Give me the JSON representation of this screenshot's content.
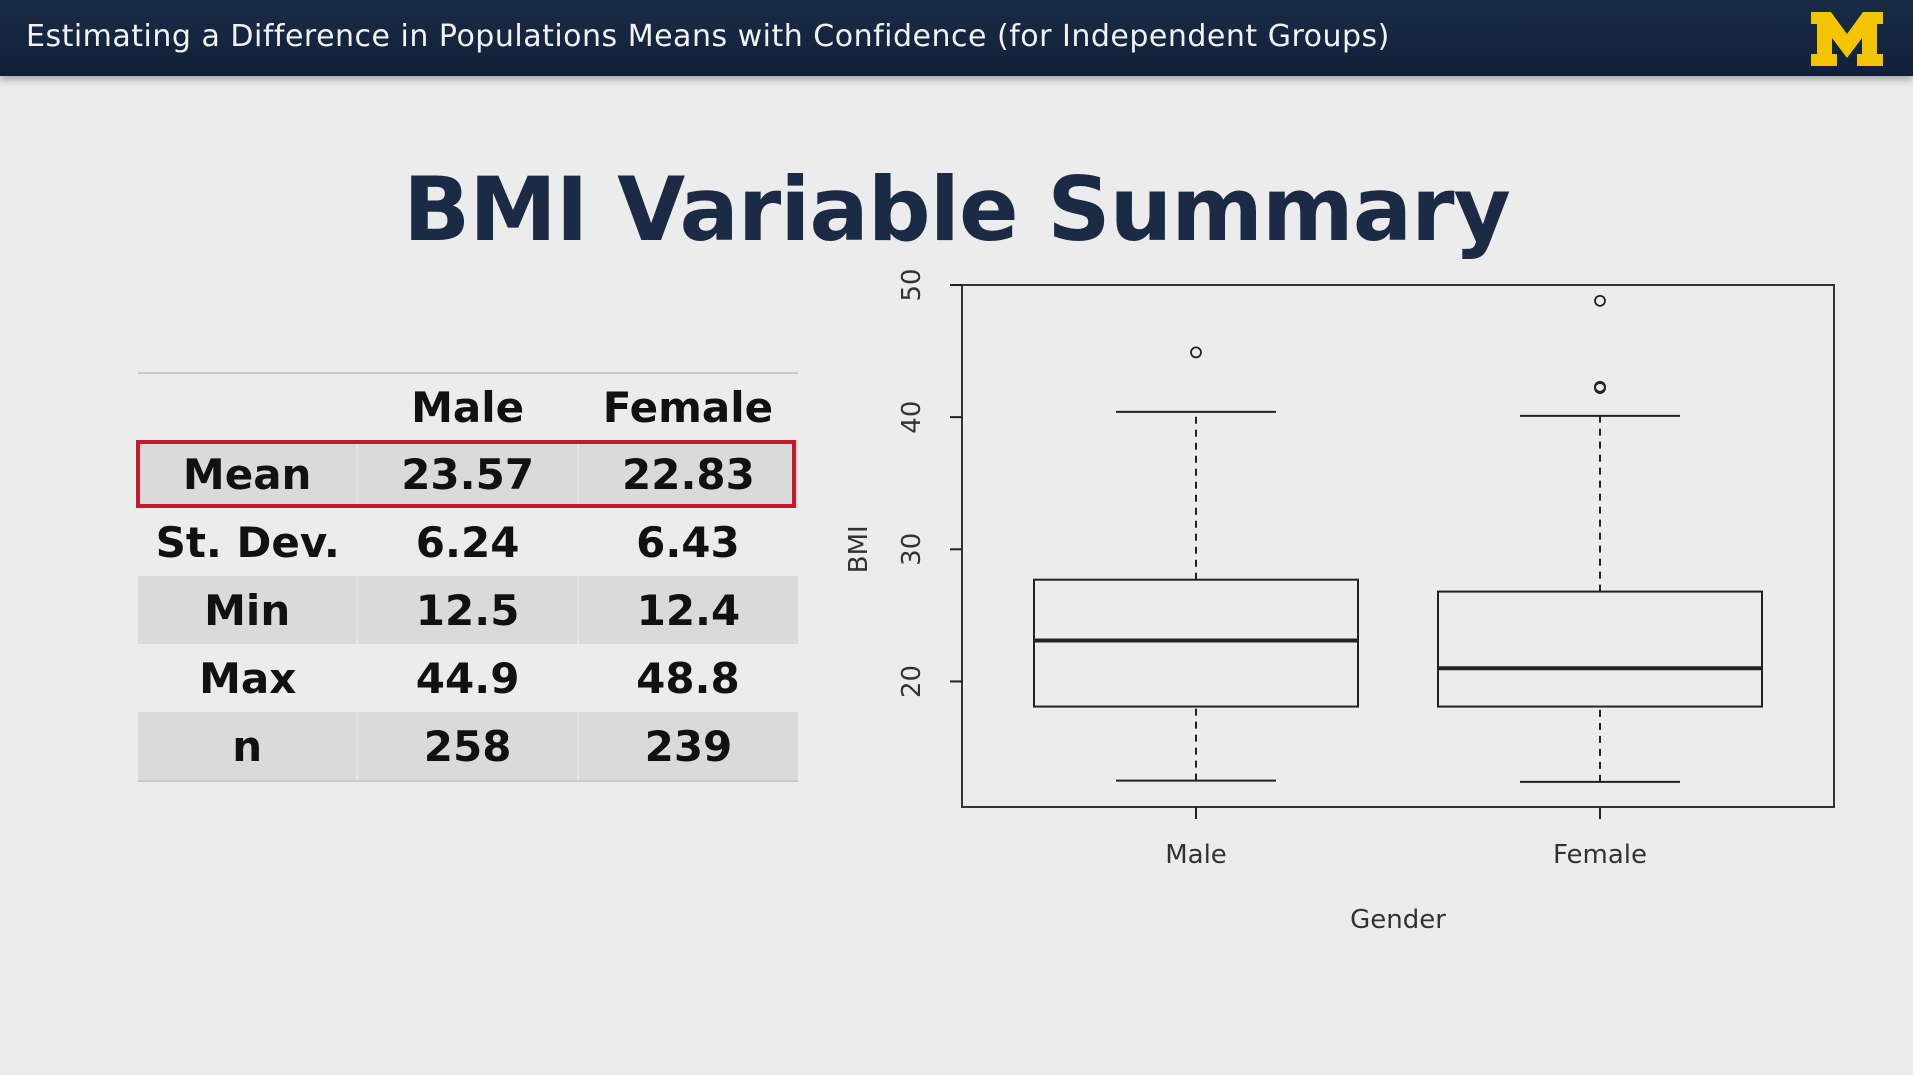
{
  "header": {
    "title": "Estimating a Difference in Populations Means with Confidence (for Independent Groups)",
    "logo_text": "M",
    "logo_color": "#f3c400",
    "bar_color": "#13233d"
  },
  "slide": {
    "title": "BMI Variable Summary"
  },
  "summary_table": {
    "columns": [
      "",
      "Male",
      "Female"
    ],
    "rows": [
      {
        "label": "Mean",
        "male": "23.57",
        "female": "22.83",
        "highlighted": true
      },
      {
        "label": "St. Dev.",
        "male": "6.24",
        "female": "6.43"
      },
      {
        "label": "Min",
        "male": "12.5",
        "female": "12.4"
      },
      {
        "label": "Max",
        "male": "44.9",
        "female": "48.8"
      },
      {
        "label": "n",
        "male": "258",
        "female": "239"
      }
    ],
    "highlight_color": "#c8182e"
  },
  "chart_data": {
    "type": "boxplot",
    "xlabel": "Gender",
    "ylabel": "BMI",
    "ylim": [
      10.5,
      50
    ],
    "yticks": [
      20,
      30,
      40,
      50
    ],
    "categories": [
      "Male",
      "Female"
    ],
    "boxes": [
      {
        "name": "Male",
        "whisker_low": 12.5,
        "q1": 18.1,
        "median": 23.1,
        "q3": 27.7,
        "whisker_high": 40.4,
        "outliers": [
          44.9
        ]
      },
      {
        "name": "Female",
        "whisker_low": 12.4,
        "q1": 18.1,
        "median": 21.0,
        "q3": 26.8,
        "whisker_high": 40.1,
        "outliers": [
          42.3,
          42.2,
          48.8
        ]
      }
    ]
  }
}
